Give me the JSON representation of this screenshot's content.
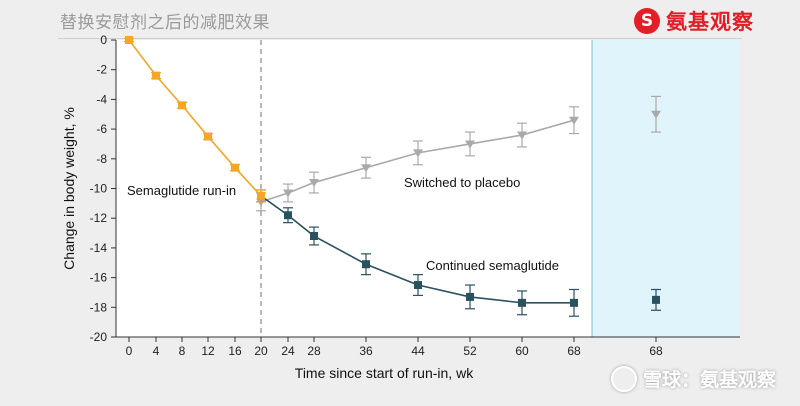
{
  "slide": {
    "title": "替换安慰剂之后的减肥效果"
  },
  "brand": {
    "mark": "S",
    "name": "氨基观察"
  },
  "watermark": {
    "text": "雪球：氨基观察",
    "icon": "snowball-icon"
  },
  "colors": {
    "runin": "#f5a623",
    "placebo": "#a9a9a9",
    "semaglutide": "#2a5160",
    "highlight": "#e0f4fb",
    "highlight_edge": "#7fbcd6"
  },
  "chart_data": {
    "type": "line",
    "title": "",
    "xlabel": "Time since start of run-in, wk",
    "ylabel": "Change in body weight, %",
    "ylim": [
      -20,
      0
    ],
    "yticks": [
      0,
      -2,
      -4,
      -6,
      -8,
      -10,
      -12,
      -14,
      -16,
      -18,
      -20
    ],
    "xticks": [
      0,
      4,
      8,
      12,
      16,
      20,
      24,
      28,
      36,
      44,
      52,
      60,
      68
    ],
    "extra_tick": "68",
    "grid": false,
    "annotations": [
      "Semaglutide run-in",
      "Switched to placebo",
      "Continued semaglutide"
    ],
    "series": [
      {
        "name": "Semaglutide run-in",
        "key": "runin",
        "x": [
          0,
          4,
          8,
          12,
          16,
          20
        ],
        "y": [
          0,
          -2.4,
          -4.4,
          -6.5,
          -8.6,
          -10.5
        ],
        "err": [
          0.1,
          0.2,
          0.2,
          0.2,
          0.2,
          0.4
        ],
        "marker": "square"
      },
      {
        "name": "Switched to placebo",
        "key": "placebo",
        "x": [
          20,
          24,
          28,
          36,
          44,
          52,
          60,
          68
        ],
        "y": [
          -10.9,
          -10.3,
          -9.6,
          -8.6,
          -7.6,
          -7.0,
          -6.4,
          -5.4
        ],
        "err": [
          0.6,
          0.6,
          0.7,
          0.7,
          0.8,
          0.8,
          0.8,
          0.9
        ],
        "marker": "triangle-down"
      },
      {
        "name": "Continued semaglutide",
        "key": "semaglutide",
        "x": [
          20,
          24,
          28,
          36,
          44,
          52,
          60,
          68
        ],
        "y": [
          -10.5,
          -11.8,
          -13.2,
          -15.1,
          -16.5,
          -17.3,
          -17.7,
          -17.7
        ],
        "err": [
          0.4,
          0.5,
          0.6,
          0.7,
          0.7,
          0.8,
          0.8,
          0.9
        ],
        "marker": "square"
      }
    ],
    "final_estimates": [
      {
        "key": "placebo",
        "label": "68",
        "y": -5.0,
        "err": 1.2,
        "marker": "triangle-down"
      },
      {
        "key": "semaglutide",
        "label": "68",
        "y": -17.5,
        "err": 0.7,
        "marker": "square"
      }
    ]
  }
}
